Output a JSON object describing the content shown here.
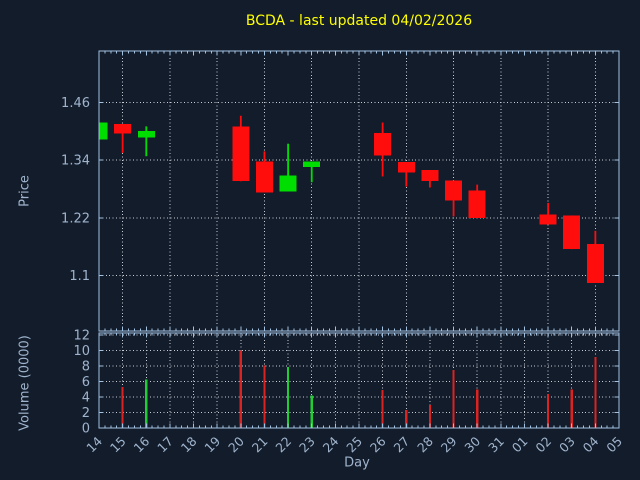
{
  "colors": {
    "background": "#121c2b",
    "title": "#ffff00",
    "spine": "#a2c1e0",
    "grid": "#c9ced6",
    "tick_label": "#a0b4cd",
    "candle_up": "#00dd00",
    "candle_down": "#ff0d0d",
    "volume_up": "#22cc33",
    "volume_down": "#dd2222"
  },
  "chart_data": {
    "type": "candlestick+volume",
    "title": "BCDA - last updated 04/02/2026",
    "xlabel": "Day",
    "ylabel_price": "Price",
    "ylabel_volume": "Volume (0000)",
    "legend": "none",
    "grid": "dotted-both-panels",
    "x_categories": [
      "14",
      "15",
      "16",
      "17",
      "18",
      "19",
      "20",
      "21",
      "22",
      "23",
      "24",
      "25",
      "26",
      "27",
      "28",
      "29",
      "30",
      "31",
      "01",
      "02",
      "03",
      "04",
      "05"
    ],
    "price_ylim": [
      0.985,
      1.5665
    ],
    "price_yticks": {
      "values": [
        1.46,
        1.34,
        1.22,
        1.1
      ],
      "labels": [
        "1.46",
        "1.34",
        "1.22",
        "1.1"
      ]
    },
    "volume_ylim": [
      0,
      12.28
    ],
    "volume_yticks": {
      "values": [
        0,
        2,
        4,
        6,
        8,
        10,
        12
      ],
      "labels": [
        "0",
        "2",
        "4",
        "6",
        "8",
        "10",
        "12"
      ]
    },
    "price_vgrid_day_indices": [
      1,
      3,
      5,
      7,
      9,
      11,
      13,
      15,
      17,
      19,
      21
    ],
    "volume_vgrid_day_indices": [
      1,
      2,
      3,
      4,
      5,
      6,
      7,
      8,
      9,
      10,
      11,
      12,
      13,
      14,
      15,
      16,
      17,
      18,
      19,
      20,
      21
    ],
    "candles": [
      {
        "day": "14",
        "open": 1.383,
        "high": 1.418,
        "low": 1.383,
        "close": 1.418,
        "volume": 0
      },
      {
        "day": "15",
        "open": 1.415,
        "high": 1.415,
        "low": 1.355,
        "close": 1.395,
        "volume": 5.3
      },
      {
        "day": "16",
        "open": 1.387,
        "high": 1.41,
        "low": 1.348,
        "close": 1.4,
        "volume": 6.3
      },
      {
        "day": "20",
        "open": 1.41,
        "high": 1.432,
        "low": 1.296,
        "close": 1.296,
        "volume": 10.0
      },
      {
        "day": "21",
        "open": 1.337,
        "high": 1.358,
        "low": 1.273,
        "close": 1.273,
        "volume": 8.1
      },
      {
        "day": "22",
        "open": 1.275,
        "high": 1.374,
        "low": 1.275,
        "close": 1.308,
        "volume": 7.9
      },
      {
        "day": "23",
        "open": 1.326,
        "high": 1.337,
        "low": 1.294,
        "close": 1.337,
        "volume": 4.2
      },
      {
        "day": "26",
        "open": 1.396,
        "high": 1.418,
        "low": 1.306,
        "close": 1.349,
        "volume": 4.9
      },
      {
        "day": "27",
        "open": 1.336,
        "high": 1.336,
        "low": 1.285,
        "close": 1.314,
        "volume": 2.3
      },
      {
        "day": "28",
        "open": 1.319,
        "high": 1.319,
        "low": 1.283,
        "close": 1.296,
        "volume": 3.0
      },
      {
        "day": "29",
        "open": 1.298,
        "high": 1.298,
        "low": 1.223,
        "close": 1.256,
        "volume": 7.5
      },
      {
        "day": "30",
        "open": 1.277,
        "high": 1.289,
        "low": 1.22,
        "close": 1.22,
        "volume": 5.0
      },
      {
        "day": "02",
        "open": 1.227,
        "high": 1.251,
        "low": 1.206,
        "close": 1.206,
        "volume": 4.4
      },
      {
        "day": "03",
        "open": 1.225,
        "high": 1.225,
        "low": 1.155,
        "close": 1.155,
        "volume": 5.0
      },
      {
        "day": "04",
        "open": 1.166,
        "high": 1.193,
        "low": 1.085,
        "close": 1.085,
        "volume": 9.2
      }
    ]
  }
}
